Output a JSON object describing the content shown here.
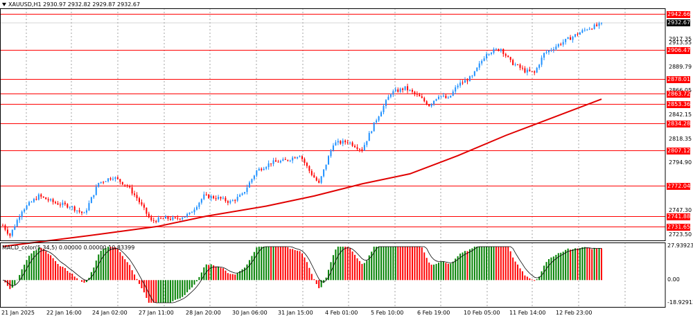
{
  "header": {
    "symbol": "XAUUSD,H1",
    "ohlc": "2930.97 2932.82 2929.87 2932.67"
  },
  "macd": {
    "title": "MACD_color(5,34,5) 0.00000 0.00000 10.83399",
    "ticks": [
      "27.93923",
      "0.00",
      "-18.92913"
    ]
  },
  "price_axis": {
    "ticks": [
      "2917.35",
      "2913.55",
      "2889.79",
      "2866.05",
      "2842.15",
      "2818.35",
      "2794.90",
      "2747.30",
      "2723.50"
    ]
  },
  "levels": [
    "2942.66",
    "2906.47",
    "2878.01",
    "2863.72",
    "2853.36",
    "2834.28",
    "2807.12",
    "2772.04",
    "2741.88",
    "2731.65"
  ],
  "current_price": "2932.67",
  "time_axis": [
    "21 Jan 2025",
    "22 Jan 16:00",
    "24 Jan 02:00",
    "27 Jan 11:00",
    "28 Jan 20:00",
    "30 Jan 06:00",
    "31 Jan 15:00",
    "4 Feb 01:00",
    "5 Feb 10:00",
    "6 Feb 19:00",
    "10 Feb 05:00",
    "11 Feb 14:00",
    "12 Feb 23:00"
  ],
  "colors": {
    "bull": "#1e90ff",
    "bear": "#ff0000",
    "level_line": "#ff0000",
    "ma": "#e00000",
    "hist_up": "#008000",
    "hist_down": "#ff0000",
    "grid": "#000000"
  },
  "chart_data": {
    "type": "candlestick",
    "price_range": [
      2718,
      2948
    ],
    "path_points": [
      [
        0,
        2733
      ],
      [
        3,
        2723
      ],
      [
        8,
        2748
      ],
      [
        15,
        2762
      ],
      [
        22,
        2755
      ],
      [
        28,
        2752
      ],
      [
        34,
        2744
      ],
      [
        40,
        2775
      ],
      [
        46,
        2781
      ],
      [
        52,
        2772
      ],
      [
        56,
        2760
      ],
      [
        62,
        2737
      ],
      [
        68,
        2740
      ],
      [
        72,
        2739
      ],
      [
        78,
        2744
      ],
      [
        84,
        2762
      ],
      [
        90,
        2760
      ],
      [
        95,
        2756
      ],
      [
        100,
        2763
      ],
      [
        106,
        2787
      ],
      [
        112,
        2795
      ],
      [
        118,
        2797
      ],
      [
        124,
        2803
      ],
      [
        128,
        2787
      ],
      [
        132,
        2774
      ],
      [
        138,
        2814
      ],
      [
        144,
        2816
      ],
      [
        150,
        2808
      ],
      [
        156,
        2838
      ],
      [
        162,
        2864
      ],
      [
        168,
        2869
      ],
      [
        174,
        2860
      ],
      [
        178,
        2852
      ],
      [
        182,
        2862
      ],
      [
        186,
        2858
      ],
      [
        190,
        2872
      ],
      [
        196,
        2880
      ],
      [
        202,
        2904
      ],
      [
        208,
        2908
      ],
      [
        212,
        2895
      ],
      [
        218,
        2886
      ],
      [
        222,
        2884
      ],
      [
        226,
        2903
      ],
      [
        232,
        2912
      ],
      [
        238,
        2920
      ],
      [
        244,
        2928
      ],
      [
        250,
        2932
      ]
    ],
    "moving_average": [
      [
        0,
        2712
      ],
      [
        40,
        2724
      ],
      [
        65,
        2732
      ],
      [
        85,
        2742
      ],
      [
        110,
        2752
      ],
      [
        130,
        2762
      ],
      [
        150,
        2774
      ],
      [
        170,
        2784
      ],
      [
        190,
        2802
      ],
      [
        210,
        2822
      ],
      [
        230,
        2840
      ],
      [
        250,
        2858
      ]
    ],
    "macd_histogram_scale": [
      -18.92913,
      27.93923
    ]
  }
}
